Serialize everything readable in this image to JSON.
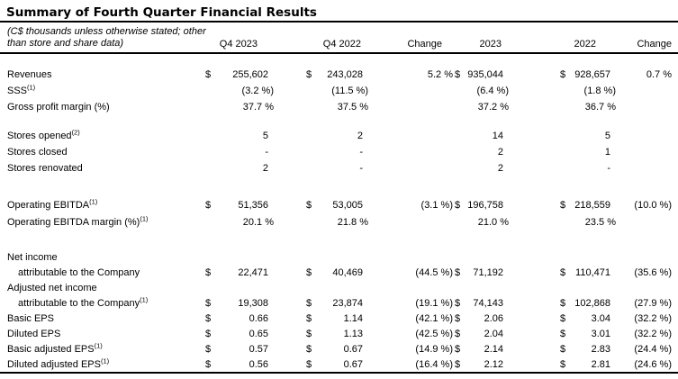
{
  "page": {
    "title": "Summary of Fourth Quarter Financial Results",
    "note_line1": "(C$ thousands unless otherwise stated; other",
    "note_line2": "than store and share data)",
    "text_color": "#000000",
    "background_color": "#ffffff"
  },
  "table": {
    "column_headers": [
      "Q4 2023",
      "Q4 2022",
      "Change",
      "2023",
      "2022",
      "Change"
    ],
    "rows": [
      {
        "label": "Revenues",
        "sup": "",
        "cells": {
          "d1": "$",
          "v1": "255,602",
          "d2": "$",
          "v2": "243,028",
          "c1": "5.2 %",
          "d3": "$",
          "v3": "935,044",
          "d4": "$",
          "v4": "928,657",
          "c2": "0.7 %"
        }
      },
      {
        "label": "SSS",
        "sup": "(1)",
        "cells": {
          "v1": "(3.2 %)",
          "v2": "(11.5 %)",
          "v3": "(6.4 %)",
          "v4": "(1.8 %)"
        }
      },
      {
        "label": "Gross profit margin (%)",
        "sup": "",
        "cells": {
          "v1": "37.7 %",
          "v2": "37.5 %",
          "v3": "37.2 %",
          "v4": "36.7 %"
        }
      },
      {
        "gap": true
      },
      {
        "label": "Stores opened",
        "sup": "(2)",
        "cells": {
          "v1": "5",
          "v2": "2",
          "v3": "14",
          "v4": "5"
        }
      },
      {
        "label": "Stores closed",
        "sup": "",
        "cells": {
          "v1": "-",
          "v2": "-",
          "v3": "2",
          "v4": "1"
        }
      },
      {
        "label": "Stores renovated",
        "sup": "",
        "cells": {
          "v1": "2",
          "v2": "-",
          "v3": "2",
          "v4": "-"
        }
      },
      {
        "gap": true
      },
      {
        "label": "Operating EBITDA",
        "sup": "(1)",
        "cells": {
          "d1": "$",
          "v1": "51,356",
          "d2": "$",
          "v2": "53,005",
          "c1": "(3.1 %)",
          "d3": "$",
          "v3": "196,758",
          "d4": "$",
          "v4": "218,559",
          "c2": "(10.0 %)"
        }
      },
      {
        "label": "Operating EBITDA margin (%)",
        "sup": "(1)",
        "cells": {
          "v1": "20.1 %",
          "v2": "21.8 %",
          "v3": "21.0 %",
          "v4": "23.5 %"
        }
      },
      {
        "gap": true
      },
      {
        "label": "Net income",
        "sup": "",
        "cells": {}
      },
      {
        "label": "attributable to the Company",
        "sup": "",
        "indent": true,
        "cells": {
          "d1": "$",
          "v1": "22,471",
          "d2": "$",
          "v2": "40,469",
          "c1": "(44.5 %)",
          "d3": "$",
          "v3": "71,192",
          "d4": "$",
          "v4": "110,471",
          "c2": "(35.6 %)"
        }
      },
      {
        "label": "Adjusted net income",
        "sup": "",
        "cells": {}
      },
      {
        "label": "attributable to the Company",
        "sup": "(1)",
        "indent": true,
        "cells": {
          "d1": "$",
          "v1": "19,308",
          "d2": "$",
          "v2": "23,874",
          "c1": "(19.1 %)",
          "d3": "$",
          "v3": "74,143",
          "d4": "$",
          "v4": "102,868",
          "c2": "(27.9 %)"
        }
      },
      {
        "label": "Basic EPS",
        "sup": "",
        "cells": {
          "d1": "$",
          "v1": "0.66",
          "d2": "$",
          "v2": "1.14",
          "c1": "(42.1 %)",
          "d3": "$",
          "v3": "2.06",
          "d4": "$",
          "v4": "3.04",
          "c2": "(32.2 %)"
        }
      },
      {
        "label": "Diluted EPS",
        "sup": "",
        "cells": {
          "d1": "$",
          "v1": "0.65",
          "d2": "$",
          "v2": "1.13",
          "c1": "(42.5 %)",
          "d3": "$",
          "v3": "2.04",
          "d4": "$",
          "v4": "3.01",
          "c2": "(32.2 %)"
        }
      },
      {
        "label": "Basic adjusted EPS",
        "sup": "(1)",
        "cells": {
          "d1": "$",
          "v1": "0.57",
          "d2": "$",
          "v2": "0.67",
          "c1": "(14.9 %)",
          "d3": "$",
          "v3": "2.14",
          "d4": "$",
          "v4": "2.83",
          "c2": "(24.4 %)"
        }
      },
      {
        "label": "Diluted adjusted EPS",
        "sup": "(1)",
        "cells": {
          "d1": "$",
          "v1": "0.56",
          "d2": "$",
          "v2": "0.67",
          "c1": "(16.4 %)",
          "d3": "$",
          "v3": "2.12",
          "d4": "$",
          "v4": "2.81",
          "c2": "(24.6 %)"
        }
      }
    ]
  }
}
